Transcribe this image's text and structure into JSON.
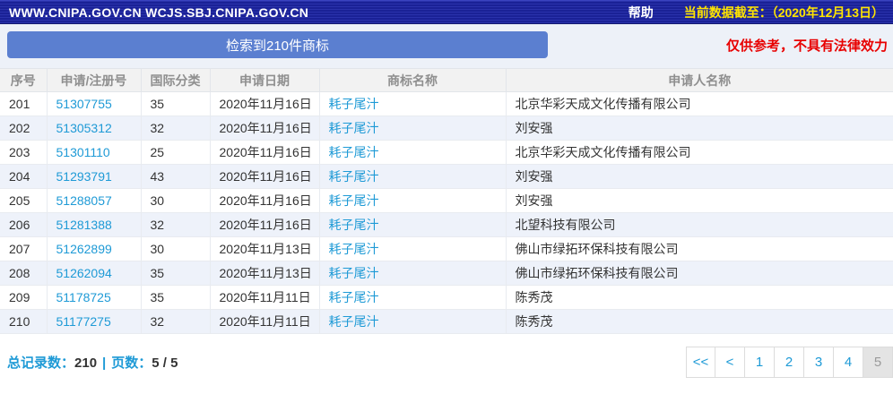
{
  "topbar": {
    "domains": "WWW.CNIPA.GOV.CN WCJS.SBJ.CNIPA.GOV.CN",
    "help_label": "帮助",
    "data_cutoff_label": "当前数据截至：",
    "data_cutoff_value": "（2020年12月13日）"
  },
  "toolbar": {
    "result_button_label": "检索到210件商标",
    "disclaimer": "仅供参考，不具有法律效力"
  },
  "table": {
    "columns": [
      "序号",
      "申请/注册号",
      "国际分类",
      "申请日期",
      "商标名称",
      "申请人名称"
    ],
    "rows": [
      {
        "seq": "201",
        "app_no": "51307755",
        "intl_class": "35",
        "date": "2020年11月16日",
        "mark": "耗子尾汁",
        "applicant": "北京华彩天成文化传播有限公司"
      },
      {
        "seq": "202",
        "app_no": "51305312",
        "intl_class": "32",
        "date": "2020年11月16日",
        "mark": "耗子尾汁",
        "applicant": "刘安强"
      },
      {
        "seq": "203",
        "app_no": "51301110",
        "intl_class": "25",
        "date": "2020年11月16日",
        "mark": "耗子尾汁",
        "applicant": "北京华彩天成文化传播有限公司"
      },
      {
        "seq": "204",
        "app_no": "51293791",
        "intl_class": "43",
        "date": "2020年11月16日",
        "mark": "耗子尾汁",
        "applicant": "刘安强"
      },
      {
        "seq": "205",
        "app_no": "51288057",
        "intl_class": "30",
        "date": "2020年11月16日",
        "mark": "耗子尾汁",
        "applicant": "刘安强"
      },
      {
        "seq": "206",
        "app_no": "51281388",
        "intl_class": "32",
        "date": "2020年11月16日",
        "mark": "耗子尾汁",
        "applicant": "北望科技有限公司"
      },
      {
        "seq": "207",
        "app_no": "51262899",
        "intl_class": "30",
        "date": "2020年11月13日",
        "mark": "耗子尾汁",
        "applicant": "佛山市绿拓环保科技有限公司"
      },
      {
        "seq": "208",
        "app_no": "51262094",
        "intl_class": "35",
        "date": "2020年11月13日",
        "mark": "耗子尾汁",
        "applicant": "佛山市绿拓环保科技有限公司"
      },
      {
        "seq": "209",
        "app_no": "51178725",
        "intl_class": "35",
        "date": "2020年11月11日",
        "mark": "耗子尾汁",
        "applicant": "陈秀茂"
      },
      {
        "seq": "210",
        "app_no": "51177275",
        "intl_class": "32",
        "date": "2020年11月11日",
        "mark": "耗子尾汁",
        "applicant": "陈秀茂"
      }
    ]
  },
  "footer": {
    "total_label": "总记录数：",
    "total_value": "210",
    "separator": "|",
    "pages_label": "页数：",
    "pages_value": "5 / 5"
  },
  "pagination": {
    "items": [
      {
        "label": "<<",
        "current": false
      },
      {
        "label": "<",
        "current": false
      },
      {
        "label": "1",
        "current": false
      },
      {
        "label": "2",
        "current": false
      },
      {
        "label": "3",
        "current": false
      },
      {
        "label": "4",
        "current": false
      },
      {
        "label": "5",
        "current": true
      }
    ]
  },
  "colors": {
    "topbar_bg": "#1a2196",
    "button_blue": "#5b7fd0",
    "link_blue": "#1e9ad6",
    "warning_red": "#e80000",
    "cutoff_yellow": "#ffe400",
    "row_alt_bg": "#eef2fa"
  }
}
